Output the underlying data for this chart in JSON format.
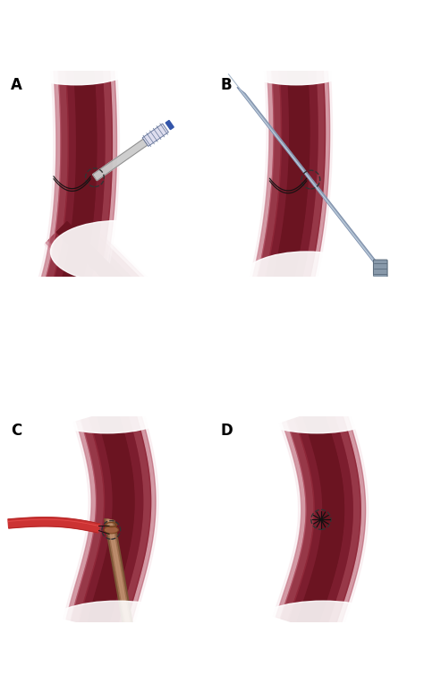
{
  "fig_width": 4.74,
  "fig_height": 7.74,
  "dpi": 100,
  "background_color": "#ffffff",
  "panel_labels": [
    "A",
    "B",
    "C",
    "D"
  ],
  "label_fontsize": 12,
  "label_fontweight": "bold",
  "artery_dark": "#7A1E2A",
  "artery_mid": "#922838",
  "artery_light": "#C06070",
  "wire_blue": "#8899CC",
  "wire_light": "#AABBDD",
  "catheter_blue": "#9AABCC",
  "needle_silver": "#D0D0D0",
  "needle_dark": "#909090",
  "suture_red": "#CC3333",
  "dilator_brown": "#8B6040",
  "dilator_dark": "#6B4020",
  "stitch_black": "#111111",
  "dash_color": "#222222"
}
